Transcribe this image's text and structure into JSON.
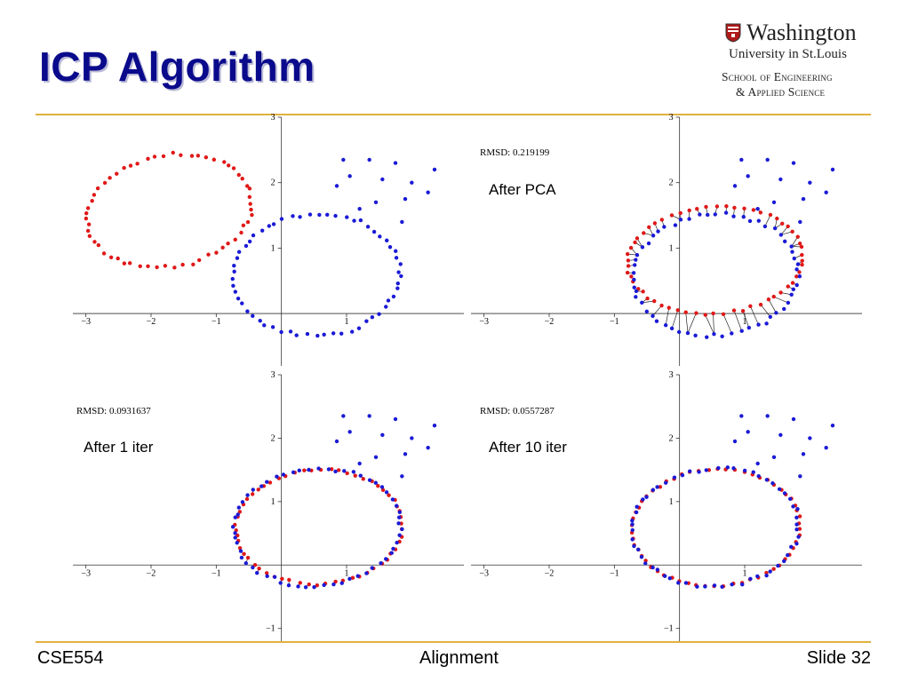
{
  "title": "ICP Algorithm",
  "logo": {
    "line1": "Washington",
    "line2": "University in St.Louis",
    "line3": "School of Engineering",
    "line4": "& Applied Science"
  },
  "footer": {
    "left": "CSE554",
    "center": "Alignment",
    "right": "Slide 32"
  },
  "colors": {
    "title": "#0a0a8c",
    "rule": "#e0b040",
    "source": "#e01818",
    "target": "#1a1ad6",
    "match_line": "#000000"
  },
  "chart_data": [
    {
      "type": "scatter",
      "rmsd_label": "",
      "caption": "",
      "xlim": [
        -3.2,
        2.8
      ],
      "ylim": [
        -0.8,
        3
      ],
      "xticks": [
        -3,
        -2,
        -1,
        1
      ],
      "yticks": [
        1,
        2,
        3
      ],
      "show_matches": false,
      "series": [
        {
          "color": "red",
          "transform": {
            "cx": -1.72,
            "cy": 1.57,
            "rx": 1.28,
            "ry": 0.85,
            "rotate": 10,
            "noise": 0.03,
            "outliers_offset": [
              -1.1,
              1.23
            ]
          }
        },
        {
          "color": "blue",
          "transform": {
            "cx": 0.55,
            "cy": 0.59,
            "rx": 1.28,
            "ry": 0.93,
            "rotate": 3,
            "noise": 0.03,
            "outliers_offset": [
              0,
              0
            ]
          }
        }
      ]
    },
    {
      "type": "scatter",
      "rmsd_label": "RMSD: 0.219199",
      "caption": "After PCA",
      "xlim": [
        -3.2,
        2.8
      ],
      "ylim": [
        -0.8,
        3
      ],
      "xticks": [
        -3,
        -2,
        -1,
        1
      ],
      "yticks": [
        1,
        2,
        3
      ],
      "show_matches": true,
      "series": [
        {
          "color": "red",
          "transform": {
            "cx": 0.55,
            "cy": 0.82,
            "rx": 1.35,
            "ry": 0.82,
            "rotate": 4,
            "noise": 0.02,
            "outliers_offset": [
              0.55,
              -0.45
            ]
          }
        },
        {
          "color": "blue",
          "transform": {
            "cx": 0.55,
            "cy": 0.59,
            "rx": 1.28,
            "ry": 0.93,
            "rotate": 3,
            "noise": 0.03,
            "outliers_offset": [
              0,
              0
            ]
          }
        }
      ]
    },
    {
      "type": "scatter",
      "rmsd_label": "RMSD: 0.0931637",
      "caption": "After 1 iter",
      "xlim": [
        -3.2,
        2.8
      ],
      "ylim": [
        -1.2,
        3
      ],
      "xticks": [
        -3,
        -2,
        -1,
        1
      ],
      "yticks": [
        -1,
        1,
        2,
        3
      ],
      "show_matches": true,
      "series": [
        {
          "color": "red",
          "transform": {
            "cx": 0.58,
            "cy": 0.6,
            "rx": 1.28,
            "ry": 0.9,
            "rotate": 2,
            "noise": 0.02,
            "outliers_offset": [
              0.3,
              -0.6
            ]
          }
        },
        {
          "color": "blue",
          "transform": {
            "cx": 0.55,
            "cy": 0.59,
            "rx": 1.28,
            "ry": 0.93,
            "rotate": 3,
            "noise": 0.03,
            "outliers_offset": [
              0,
              0
            ]
          }
        }
      ]
    },
    {
      "type": "scatter",
      "rmsd_label": "RMSD: 0.0557287",
      "caption": "After 10 iter",
      "xlim": [
        -3.2,
        2.8
      ],
      "ylim": [
        -1.2,
        3
      ],
      "xticks": [
        -3,
        -2,
        -1,
        1
      ],
      "yticks": [
        -1,
        1,
        2,
        3
      ],
      "show_matches": true,
      "series": [
        {
          "color": "red",
          "transform": {
            "cx": 0.56,
            "cy": 0.59,
            "rx": 1.29,
            "ry": 0.92,
            "rotate": 3,
            "noise": 0.015,
            "outliers_offset": [
              0.1,
              -0.2
            ]
          }
        },
        {
          "color": "blue",
          "transform": {
            "cx": 0.55,
            "cy": 0.59,
            "rx": 1.28,
            "ry": 0.93,
            "rotate": 3,
            "noise": 0.03,
            "outliers_offset": [
              0,
              0
            ]
          }
        }
      ]
    }
  ]
}
